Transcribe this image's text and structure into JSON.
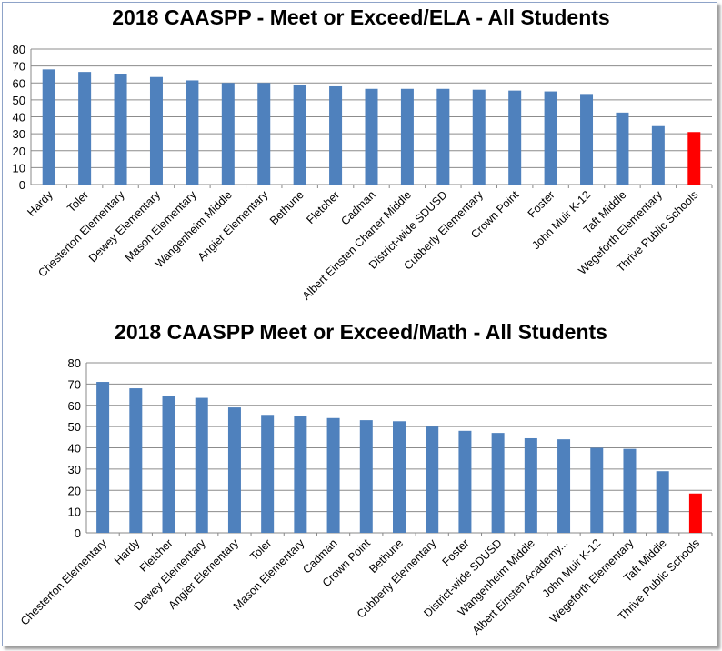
{
  "chart_data": [
    {
      "type": "bar",
      "title": "2018 CAASPP - Meet or Exceed/ELA - All Students",
      "xlabel": "",
      "ylabel": "",
      "ylim": [
        0,
        80
      ],
      "yticks": [
        0,
        10,
        20,
        30,
        40,
        50,
        60,
        70,
        80
      ],
      "grid": true,
      "bar_color": "#4f81bd",
      "highlight_color": "#ff0000",
      "highlight_category": "Thrive Public Schools",
      "categories": [
        "Hardy",
        "Toler",
        "Chesterton Elementary",
        "Dewey Elementary",
        "Mason Elementary",
        "Wangenheim Middle",
        "Angier Elementary",
        "Bethune",
        "Fletcher",
        "Cadman",
        "Albert Einsten Charter Middle",
        "District-wide SDUSD",
        "Cubberly Elementary",
        "Crown Point",
        "Foster",
        "John Muir K-12",
        "Taft Middle",
        "Wegeforth Elementary",
        "Thrive Public Schools"
      ],
      "values": [
        68,
        66.5,
        65.5,
        63.5,
        61.5,
        60,
        60,
        59,
        58,
        56.5,
        56.5,
        56.5,
        56,
        55.5,
        55,
        53.5,
        42.5,
        34.5,
        31
      ]
    },
    {
      "type": "bar",
      "title": "2018 CAASPP Meet or Exceed/Math - All Students",
      "xlabel": "",
      "ylabel": "",
      "ylim": [
        0,
        80
      ],
      "yticks": [
        0,
        10,
        20,
        30,
        40,
        50,
        60,
        70,
        80
      ],
      "grid": true,
      "bar_color": "#4f81bd",
      "highlight_color": "#ff0000",
      "highlight_category": "Thrive Public Schools",
      "categories": [
        "Chesterton Elementary",
        "Hardy",
        "Fletcher",
        "Dewey Elementary",
        "Angier Elementary",
        "Toler",
        "Mason Elementary",
        "Cadman",
        "Crown Point",
        "Bethune",
        "Cubberly Elementary",
        "Foster",
        "District-wide SDUSD",
        "Wangenheim Middle",
        "Albert Einsten Academy...",
        "John Muir K-12",
        "Wegeforth Elementary",
        "Taft Middle",
        "Thrive Public Schools"
      ],
      "values": [
        71,
        68,
        64.5,
        63.5,
        59,
        55.5,
        55,
        54,
        53,
        52.5,
        50,
        48,
        47,
        44.5,
        44,
        40,
        39.5,
        29,
        18.5
      ]
    }
  ]
}
